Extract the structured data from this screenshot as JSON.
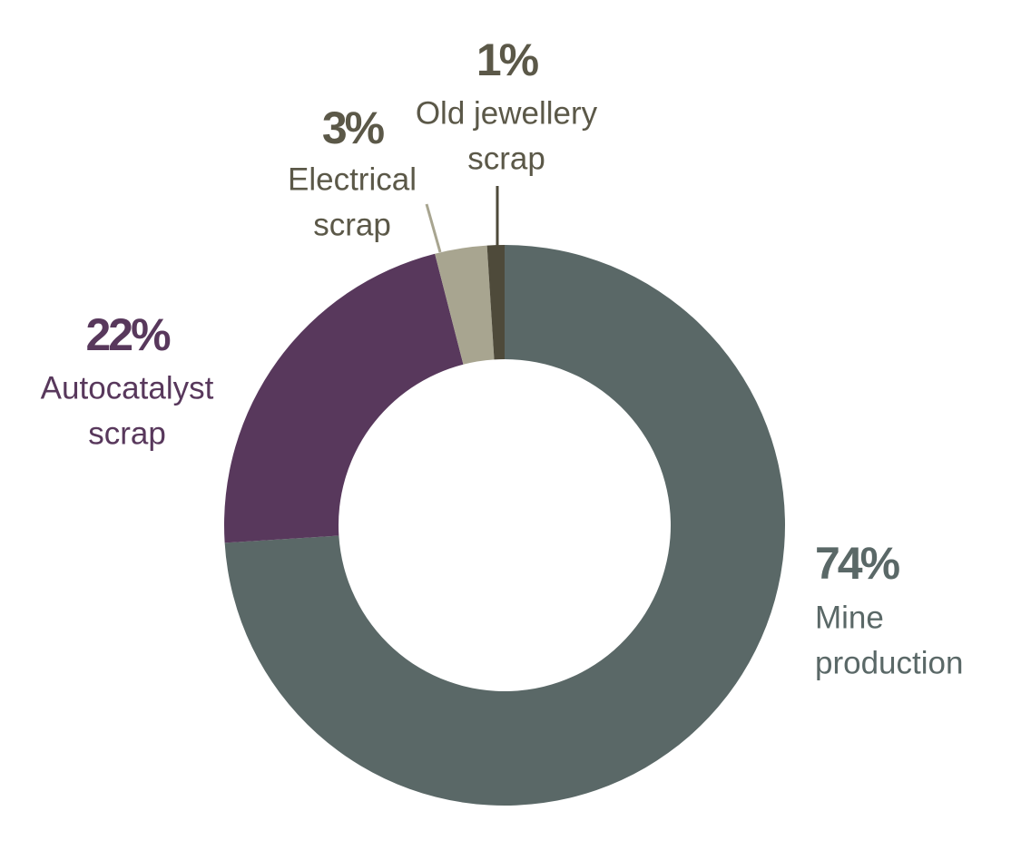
{
  "chart_data": {
    "type": "pie",
    "donut": true,
    "categories": [
      [
        "Mine",
        "production"
      ],
      [
        "Autocatalyst",
        "scrap"
      ],
      [
        "Electrical",
        "scrap"
      ],
      [
        "Old jewellery",
        "scrap"
      ]
    ],
    "values": [
      74,
      22,
      3,
      1
    ],
    "value_labels": [
      "74%",
      "22%",
      "3%",
      "1%"
    ],
    "colors": [
      "#5a6867",
      "#58385c",
      "#a8a590",
      "#4e4a3a"
    ],
    "label_colors": [
      "#5a6867",
      "#58385c",
      "#5b5848",
      "#5b5848"
    ]
  }
}
